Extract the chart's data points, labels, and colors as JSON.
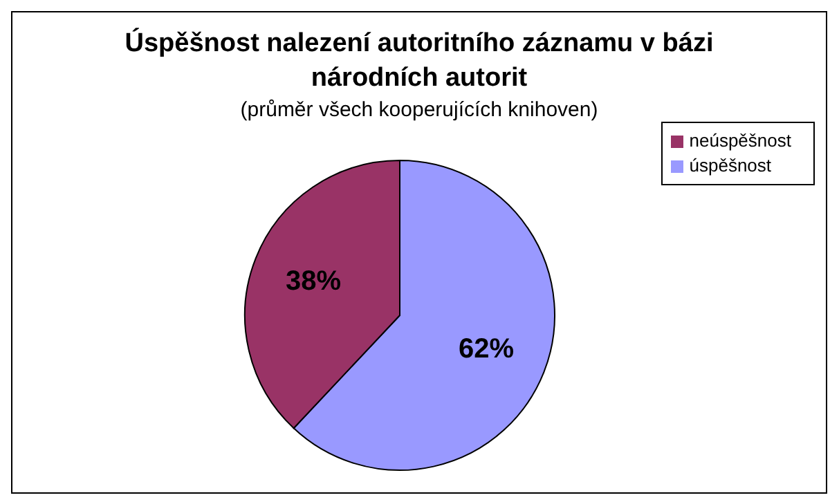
{
  "chart_data": {
    "type": "pie",
    "title": "Úspěšnost nalezení autoritního záznamu v bázi národních autorit",
    "subtitle": "(průměr všech kooperujících knihoven)",
    "categories": [
      "úspěšnost",
      "neúspěšnost"
    ],
    "values": [
      62,
      38
    ],
    "colors": [
      "#9999ff",
      "#993366"
    ],
    "value_labels": [
      "62%",
      "38%"
    ],
    "legend": "top right"
  }
}
